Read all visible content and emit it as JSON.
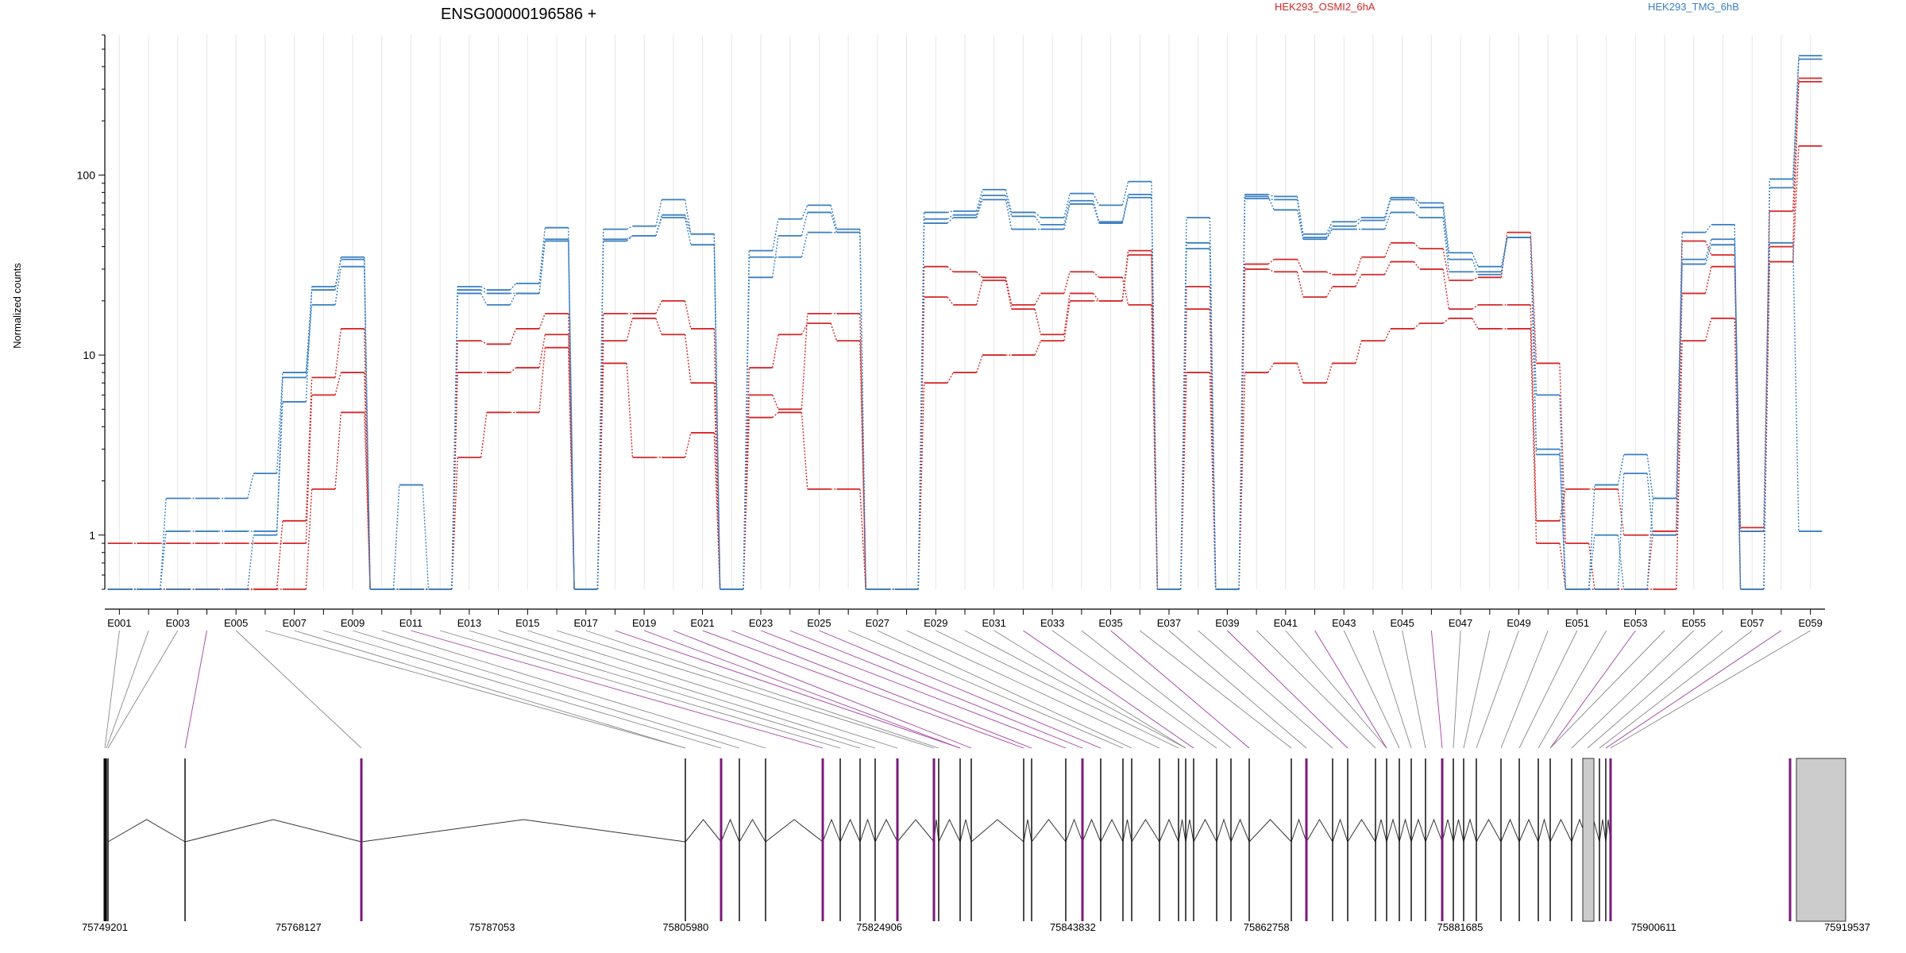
{
  "chart_data": {
    "type": "line",
    "title": "ENSG00000196586 +",
    "ylabel": "Normalized counts",
    "xlabel": "",
    "yscale": "log",
    "ylim": [
      0.5,
      600
    ],
    "grid": "vertical light lines per exon",
    "legend_position": "top",
    "yticks": [
      {
        "value": 1,
        "label": "1"
      },
      {
        "value": 10,
        "label": "10"
      },
      {
        "value": 100,
        "label": "100"
      }
    ],
    "categories": [
      "E001",
      "E002",
      "E003",
      "E004",
      "E005",
      "E006",
      "E007",
      "E008",
      "E009",
      "E010",
      "E011",
      "E012",
      "E013",
      "E014",
      "E015",
      "E016",
      "E017",
      "E018",
      "E019",
      "E020",
      "E021",
      "E022",
      "E023",
      "E024",
      "E025",
      "E026",
      "E027",
      "E028",
      "E029",
      "E030",
      "E031",
      "E032",
      "E033",
      "E034",
      "E035",
      "E036",
      "E037",
      "E038",
      "E039",
      "E040",
      "E041",
      "E042",
      "E043",
      "E044",
      "E045",
      "E046",
      "E047",
      "E048",
      "E049",
      "E050",
      "E051",
      "E052",
      "E053",
      "E054",
      "E055",
      "E056",
      "E057",
      "E058",
      "E059"
    ],
    "shown_tick_labels": [
      "E001",
      "E003",
      "E005",
      "E007",
      "E009",
      "E011",
      "E013",
      "E015",
      "E017",
      "E019",
      "E021",
      "E023",
      "E025",
      "E027",
      "E029",
      "E031",
      "E033",
      "E035",
      "E037",
      "E039",
      "E041",
      "E043",
      "E045",
      "E047",
      "E049",
      "E051",
      "E053",
      "E055",
      "E057",
      "E059"
    ],
    "series": [
      {
        "name": "HEK293_OSMI2_6hA",
        "color": "#d62728",
        "values": [
          0.9,
          0.9,
          0.9,
          0.9,
          0.9,
          0.9,
          0.9,
          6,
          8,
          0.5,
          0.5,
          0.5,
          12,
          11.5,
          14,
          17,
          0.5,
          12,
          16,
          13,
          7,
          0.5,
          8.5,
          13,
          15,
          12,
          0.5,
          0.5,
          31,
          29,
          27,
          19,
          22,
          29,
          27,
          19,
          0.5,
          24,
          0.5,
          32,
          34,
          29,
          28,
          35,
          42,
          39,
          26,
          27,
          48,
          9,
          0.9,
          0.5,
          0.5,
          1.05,
          43,
          36,
          1.1,
          63,
          330
        ]
      },
      {
        "name": "HEK293_OSMI2_6hA",
        "color": "#d62728",
        "values": [
          0.5,
          0.5,
          0.5,
          0.5,
          0.5,
          0.5,
          1.2,
          7.5,
          14,
          0.5,
          0.5,
          0.5,
          8,
          8,
          8.5,
          13,
          0.5,
          17,
          17,
          20,
          14,
          0.5,
          6,
          5,
          17,
          17,
          0.5,
          0.5,
          21,
          19,
          26,
          18,
          13,
          22,
          20,
          36,
          0.5,
          8,
          0.5,
          30,
          29,
          21,
          24,
          28,
          33,
          30,
          18,
          19,
          19,
          1.2,
          1.8,
          1.8,
          1,
          1,
          22,
          31,
          1.05,
          40,
          345
        ]
      },
      {
        "name": "HEK293_OSMI2_6hA",
        "color": "#d62728",
        "values": [
          0.5,
          0.5,
          0.5,
          0.5,
          0.5,
          0.5,
          0.5,
          1.8,
          4.8,
          0.5,
          0.5,
          0.5,
          2.7,
          4.8,
          4.8,
          11,
          0.5,
          9,
          2.7,
          2.7,
          3.7,
          0.5,
          4.5,
          4.8,
          1.8,
          1.8,
          0.5,
          0.5,
          7,
          8,
          10,
          10,
          12,
          20,
          20,
          38,
          0.5,
          18,
          0.5,
          8,
          9,
          7,
          9,
          12,
          14,
          15,
          16,
          14,
          14,
          0.9,
          0.5,
          0.5,
          0.5,
          0.5,
          12,
          16,
          0.5,
          33,
          145
        ]
      },
      {
        "name": "HEK293_TMG_6hB",
        "color": "#3a7fc1",
        "values": [
          0.5,
          0.5,
          1.6,
          1.6,
          1.6,
          2.2,
          8,
          23,
          35,
          0.5,
          1.9,
          0.5,
          24,
          23,
          25,
          51,
          0.5,
          50,
          52,
          73,
          47,
          0.5,
          38,
          57,
          68,
          50,
          0.5,
          0.5,
          62,
          63,
          83,
          62,
          58,
          79,
          68,
          92,
          0.5,
          58,
          0.5,
          78,
          76,
          47,
          55,
          58,
          75,
          70,
          37,
          31,
          45,
          3,
          0.5,
          1.9,
          2.8,
          1.6,
          48,
          53,
          0.5,
          95,
          460
        ]
      },
      {
        "name": "HEK293_TMG_6hB",
        "color": "#3a7fc1",
        "values": [
          0.5,
          0.5,
          1.05,
          1.05,
          1.05,
          1.05,
          5.5,
          24,
          34,
          0.5,
          0.5,
          0.5,
          23,
          22,
          22,
          44,
          0.5,
          44,
          46,
          58,
          41,
          0.5,
          27,
          46,
          62,
          48,
          0.5,
          0.5,
          57,
          60,
          77,
          59,
          53,
          72,
          55,
          78,
          0.5,
          42,
          0.5,
          74,
          73,
          45,
          52,
          56,
          73,
          66,
          34,
          28,
          45,
          2.8,
          0.5,
          1,
          0.5,
          1.6,
          34,
          44,
          0.5,
          85,
          440
        ]
      },
      {
        "name": "HEK293_TMG_6hB",
        "color": "#3a7fc1",
        "values": [
          0.5,
          0.5,
          0.5,
          0.5,
          0.5,
          1.0,
          7.5,
          19,
          31,
          0.5,
          0.5,
          0.5,
          22,
          19,
          22,
          43,
          0.5,
          43,
          46,
          60,
          47,
          0.5,
          35,
          35,
          48,
          48,
          0.5,
          0.5,
          54,
          58,
          73,
          50,
          50,
          69,
          54,
          75,
          0.5,
          39,
          0.5,
          76,
          64,
          44,
          50,
          50,
          62,
          58,
          29,
          29,
          45,
          6,
          0.5,
          0.5,
          2.2,
          1.0,
          32,
          41,
          1.05,
          42,
          1.05
        ]
      }
    ],
    "gene_axis_ticks": [
      "75749201",
      "75768127",
      "75787053",
      "75805980",
      "75824906",
      "75843832",
      "75862758",
      "75881685",
      "75900611",
      "75919537"
    ]
  }
}
